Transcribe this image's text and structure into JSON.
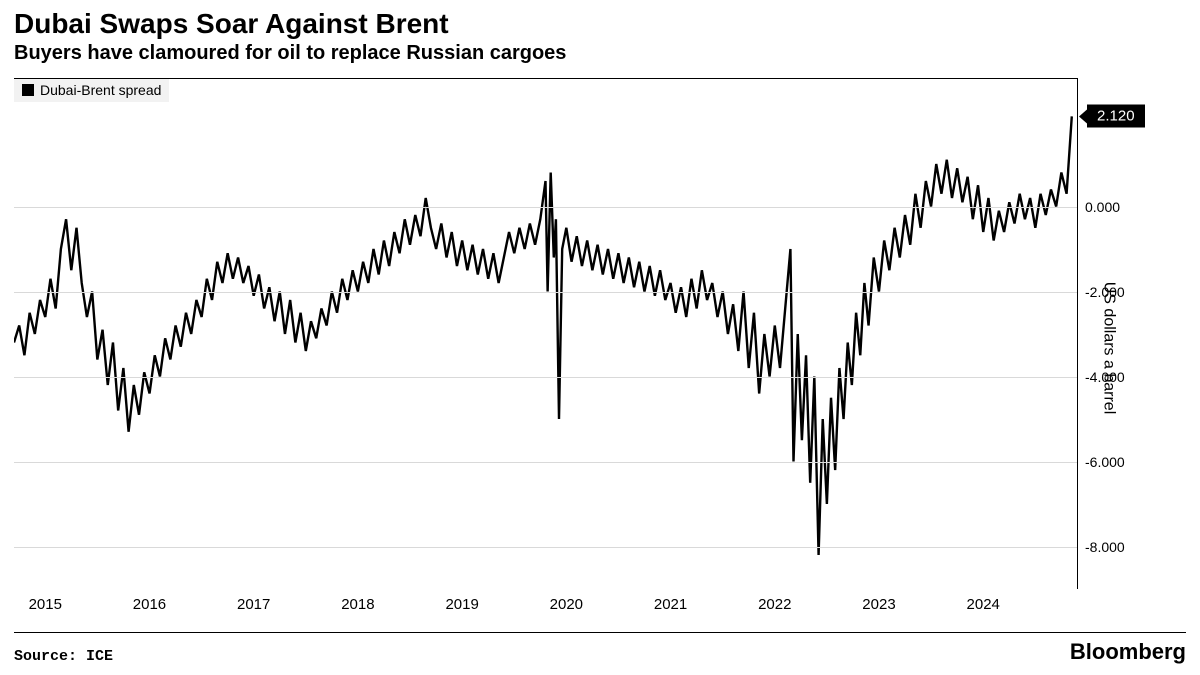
{
  "title": "Dubai Swaps Soar Against Brent",
  "subtitle": "Buyers have clamoured for oil to replace Russian cargoes",
  "legend": {
    "label": "Dubai-Brent spread",
    "swatch_color": "#000000"
  },
  "chart": {
    "type": "line",
    "line_color": "#000000",
    "line_width": 1.2,
    "background_color": "#ffffff",
    "grid_color": "#d9d9d9",
    "ylim": [
      -9,
      3
    ],
    "yticks": [
      {
        "v": 0.0,
        "label": "0.000"
      },
      {
        "v": -2.0,
        "label": "-2.000"
      },
      {
        "v": -4.0,
        "label": "-4.000"
      },
      {
        "v": -6.0,
        "label": "-6.000"
      },
      {
        "v": -8.0,
        "label": "-8.000"
      }
    ],
    "y_axis_label": "US dollars a barrel",
    "xlim": [
      2014.7,
      2024.9
    ],
    "xticks": [
      {
        "v": 2015,
        "label": "2015"
      },
      {
        "v": 2016,
        "label": "2016"
      },
      {
        "v": 2017,
        "label": "2017"
      },
      {
        "v": 2018,
        "label": "2018"
      },
      {
        "v": 2019,
        "label": "2019"
      },
      {
        "v": 2020,
        "label": "2020"
      },
      {
        "v": 2021,
        "label": "2021"
      },
      {
        "v": 2022,
        "label": "2022"
      },
      {
        "v": 2023,
        "label": "2023"
      },
      {
        "v": 2024,
        "label": "2024"
      }
    ],
    "callout": {
      "value": 2.12,
      "label": "2.120"
    },
    "series": [
      [
        2014.7,
        -3.2
      ],
      [
        2014.75,
        -2.8
      ],
      [
        2014.8,
        -3.5
      ],
      [
        2014.85,
        -2.5
      ],
      [
        2014.9,
        -3.0
      ],
      [
        2014.95,
        -2.2
      ],
      [
        2015.0,
        -2.6
      ],
      [
        2015.05,
        -1.7
      ],
      [
        2015.1,
        -2.4
      ],
      [
        2015.15,
        -1.0
      ],
      [
        2015.2,
        -0.3
      ],
      [
        2015.25,
        -1.5
      ],
      [
        2015.3,
        -0.5
      ],
      [
        2015.35,
        -1.8
      ],
      [
        2015.4,
        -2.6
      ],
      [
        2015.45,
        -2.0
      ],
      [
        2015.5,
        -3.6
      ],
      [
        2015.55,
        -2.9
      ],
      [
        2015.6,
        -4.2
      ],
      [
        2015.65,
        -3.2
      ],
      [
        2015.7,
        -4.8
      ],
      [
        2015.75,
        -3.8
      ],
      [
        2015.8,
        -5.3
      ],
      [
        2015.85,
        -4.2
      ],
      [
        2015.9,
        -4.9
      ],
      [
        2015.95,
        -3.9
      ],
      [
        2016.0,
        -4.4
      ],
      [
        2016.05,
        -3.5
      ],
      [
        2016.1,
        -4.0
      ],
      [
        2016.15,
        -3.1
      ],
      [
        2016.2,
        -3.6
      ],
      [
        2016.25,
        -2.8
      ],
      [
        2016.3,
        -3.3
      ],
      [
        2016.35,
        -2.5
      ],
      [
        2016.4,
        -3.0
      ],
      [
        2016.45,
        -2.2
      ],
      [
        2016.5,
        -2.6
      ],
      [
        2016.55,
        -1.7
      ],
      [
        2016.6,
        -2.2
      ],
      [
        2016.65,
        -1.3
      ],
      [
        2016.7,
        -1.8
      ],
      [
        2016.75,
        -1.1
      ],
      [
        2016.8,
        -1.7
      ],
      [
        2016.85,
        -1.2
      ],
      [
        2016.9,
        -1.8
      ],
      [
        2016.95,
        -1.4
      ],
      [
        2017.0,
        -2.1
      ],
      [
        2017.05,
        -1.6
      ],
      [
        2017.1,
        -2.4
      ],
      [
        2017.15,
        -1.9
      ],
      [
        2017.2,
        -2.7
      ],
      [
        2017.25,
        -2.0
      ],
      [
        2017.3,
        -3.0
      ],
      [
        2017.35,
        -2.2
      ],
      [
        2017.4,
        -3.2
      ],
      [
        2017.45,
        -2.5
      ],
      [
        2017.5,
        -3.4
      ],
      [
        2017.55,
        -2.7
      ],
      [
        2017.6,
        -3.1
      ],
      [
        2017.65,
        -2.4
      ],
      [
        2017.7,
        -2.8
      ],
      [
        2017.75,
        -2.0
      ],
      [
        2017.8,
        -2.5
      ],
      [
        2017.85,
        -1.7
      ],
      [
        2017.9,
        -2.2
      ],
      [
        2017.95,
        -1.5
      ],
      [
        2018.0,
        -2.0
      ],
      [
        2018.05,
        -1.3
      ],
      [
        2018.1,
        -1.8
      ],
      [
        2018.15,
        -1.0
      ],
      [
        2018.2,
        -1.6
      ],
      [
        2018.25,
        -0.8
      ],
      [
        2018.3,
        -1.4
      ],
      [
        2018.35,
        -0.6
      ],
      [
        2018.4,
        -1.1
      ],
      [
        2018.45,
        -0.3
      ],
      [
        2018.5,
        -0.9
      ],
      [
        2018.55,
        -0.2
      ],
      [
        2018.6,
        -0.7
      ],
      [
        2018.65,
        0.2
      ],
      [
        2018.7,
        -0.5
      ],
      [
        2018.75,
        -1.0
      ],
      [
        2018.8,
        -0.4
      ],
      [
        2018.85,
        -1.2
      ],
      [
        2018.9,
        -0.6
      ],
      [
        2018.95,
        -1.4
      ],
      [
        2019.0,
        -0.8
      ],
      [
        2019.05,
        -1.5
      ],
      [
        2019.1,
        -0.9
      ],
      [
        2019.15,
        -1.6
      ],
      [
        2019.2,
        -1.0
      ],
      [
        2019.25,
        -1.7
      ],
      [
        2019.3,
        -1.1
      ],
      [
        2019.35,
        -1.8
      ],
      [
        2019.4,
        -1.2
      ],
      [
        2019.45,
        -0.6
      ],
      [
        2019.5,
        -1.1
      ],
      [
        2019.55,
        -0.5
      ],
      [
        2019.6,
        -1.0
      ],
      [
        2019.65,
        -0.4
      ],
      [
        2019.7,
        -0.9
      ],
      [
        2019.75,
        -0.3
      ],
      [
        2019.8,
        0.6
      ],
      [
        2019.82,
        -2.0
      ],
      [
        2019.85,
        0.8
      ],
      [
        2019.88,
        -1.2
      ],
      [
        2019.9,
        -0.3
      ],
      [
        2019.93,
        -5.0
      ],
      [
        2019.96,
        -1.0
      ],
      [
        2020.0,
        -0.5
      ],
      [
        2020.05,
        -1.3
      ],
      [
        2020.1,
        -0.7
      ],
      [
        2020.15,
        -1.4
      ],
      [
        2020.2,
        -0.8
      ],
      [
        2020.25,
        -1.5
      ],
      [
        2020.3,
        -0.9
      ],
      [
        2020.35,
        -1.6
      ],
      [
        2020.4,
        -1.0
      ],
      [
        2020.45,
        -1.7
      ],
      [
        2020.5,
        -1.1
      ],
      [
        2020.55,
        -1.8
      ],
      [
        2020.6,
        -1.2
      ],
      [
        2020.65,
        -1.9
      ],
      [
        2020.7,
        -1.3
      ],
      [
        2020.75,
        -2.0
      ],
      [
        2020.8,
        -1.4
      ],
      [
        2020.85,
        -2.1
      ],
      [
        2020.9,
        -1.5
      ],
      [
        2020.95,
        -2.2
      ],
      [
        2021.0,
        -1.8
      ],
      [
        2021.05,
        -2.5
      ],
      [
        2021.1,
        -1.9
      ],
      [
        2021.15,
        -2.6
      ],
      [
        2021.2,
        -1.7
      ],
      [
        2021.25,
        -2.4
      ],
      [
        2021.3,
        -1.5
      ],
      [
        2021.35,
        -2.2
      ],
      [
        2021.4,
        -1.8
      ],
      [
        2021.45,
        -2.6
      ],
      [
        2021.5,
        -2.0
      ],
      [
        2021.55,
        -3.0
      ],
      [
        2021.6,
        -2.3
      ],
      [
        2021.65,
        -3.4
      ],
      [
        2021.7,
        -2.0
      ],
      [
        2021.75,
        -3.8
      ],
      [
        2021.8,
        -2.5
      ],
      [
        2021.85,
        -4.4
      ],
      [
        2021.9,
        -3.0
      ],
      [
        2021.95,
        -4.0
      ],
      [
        2022.0,
        -2.8
      ],
      [
        2022.05,
        -3.8
      ],
      [
        2022.1,
        -2.4
      ],
      [
        2022.15,
        -1.0
      ],
      [
        2022.18,
        -6.0
      ],
      [
        2022.22,
        -3.0
      ],
      [
        2022.26,
        -5.5
      ],
      [
        2022.3,
        -3.5
      ],
      [
        2022.34,
        -6.5
      ],
      [
        2022.38,
        -4.0
      ],
      [
        2022.42,
        -8.2
      ],
      [
        2022.46,
        -5.0
      ],
      [
        2022.5,
        -7.0
      ],
      [
        2022.54,
        -4.5
      ],
      [
        2022.58,
        -6.2
      ],
      [
        2022.62,
        -3.8
      ],
      [
        2022.66,
        -5.0
      ],
      [
        2022.7,
        -3.2
      ],
      [
        2022.74,
        -4.2
      ],
      [
        2022.78,
        -2.5
      ],
      [
        2022.82,
        -3.5
      ],
      [
        2022.86,
        -1.8
      ],
      [
        2022.9,
        -2.8
      ],
      [
        2022.95,
        -1.2
      ],
      [
        2023.0,
        -2.0
      ],
      [
        2023.05,
        -0.8
      ],
      [
        2023.1,
        -1.5
      ],
      [
        2023.15,
        -0.5
      ],
      [
        2023.2,
        -1.2
      ],
      [
        2023.25,
        -0.2
      ],
      [
        2023.3,
        -0.9
      ],
      [
        2023.35,
        0.3
      ],
      [
        2023.4,
        -0.5
      ],
      [
        2023.45,
        0.6
      ],
      [
        2023.5,
        0.0
      ],
      [
        2023.55,
        1.0
      ],
      [
        2023.6,
        0.3
      ],
      [
        2023.65,
        1.1
      ],
      [
        2023.7,
        0.2
      ],
      [
        2023.75,
        0.9
      ],
      [
        2023.8,
        0.1
      ],
      [
        2023.85,
        0.7
      ],
      [
        2023.9,
        -0.3
      ],
      [
        2023.95,
        0.5
      ],
      [
        2024.0,
        -0.6
      ],
      [
        2024.05,
        0.2
      ],
      [
        2024.1,
        -0.8
      ],
      [
        2024.15,
        -0.1
      ],
      [
        2024.2,
        -0.6
      ],
      [
        2024.25,
        0.1
      ],
      [
        2024.3,
        -0.4
      ],
      [
        2024.35,
        0.3
      ],
      [
        2024.4,
        -0.3
      ],
      [
        2024.45,
        0.2
      ],
      [
        2024.5,
        -0.5
      ],
      [
        2024.55,
        0.3
      ],
      [
        2024.6,
        -0.2
      ],
      [
        2024.65,
        0.4
      ],
      [
        2024.7,
        0.0
      ],
      [
        2024.75,
        0.8
      ],
      [
        2024.8,
        0.3
      ],
      [
        2024.85,
        2.12
      ]
    ]
  },
  "source_label": "Source: ICE",
  "brand": "Bloomberg"
}
